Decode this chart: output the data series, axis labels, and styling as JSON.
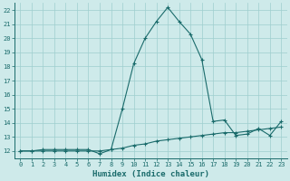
{
  "title": "",
  "xlabel": "Humidex (Indice chaleur)",
  "ylabel": "",
  "background_color": "#ceeaea",
  "grid_color": "#9ecece",
  "line_color": "#1a6b6b",
  "xlim": [
    -0.5,
    23.5
  ],
  "ylim": [
    11.5,
    22.5
  ],
  "xticks": [
    0,
    1,
    2,
    3,
    4,
    5,
    6,
    7,
    8,
    9,
    10,
    11,
    12,
    13,
    14,
    15,
    16,
    17,
    18,
    19,
    20,
    21,
    22,
    23
  ],
  "yticks": [
    12,
    13,
    14,
    15,
    16,
    17,
    18,
    19,
    20,
    21,
    22
  ],
  "line1_x": [
    0,
    1,
    2,
    3,
    4,
    5,
    6,
    7,
    8,
    9,
    10,
    11,
    12,
    13,
    14,
    15,
    16,
    17,
    18,
    19,
    20,
    21,
    22,
    23
  ],
  "line1_y": [
    12.0,
    12.0,
    12.1,
    12.1,
    12.1,
    12.1,
    12.1,
    11.8,
    12.1,
    15.0,
    18.2,
    20.0,
    21.2,
    22.2,
    21.2,
    20.3,
    18.5,
    14.1,
    14.2,
    13.1,
    13.2,
    13.6,
    13.1,
    14.1
  ],
  "line2_x": [
    0,
    1,
    2,
    3,
    4,
    5,
    6,
    7,
    8,
    9,
    10,
    11,
    12,
    13,
    14,
    15,
    16,
    17,
    18,
    19,
    20,
    21,
    22,
    23
  ],
  "line2_y": [
    12.0,
    12.0,
    12.0,
    12.0,
    12.0,
    12.0,
    12.0,
    12.0,
    12.1,
    12.2,
    12.4,
    12.5,
    12.7,
    12.8,
    12.9,
    13.0,
    13.1,
    13.2,
    13.3,
    13.3,
    13.4,
    13.5,
    13.6,
    13.7
  ],
  "xlabel_fontsize": 6.5,
  "tick_fontsize": 5.0
}
